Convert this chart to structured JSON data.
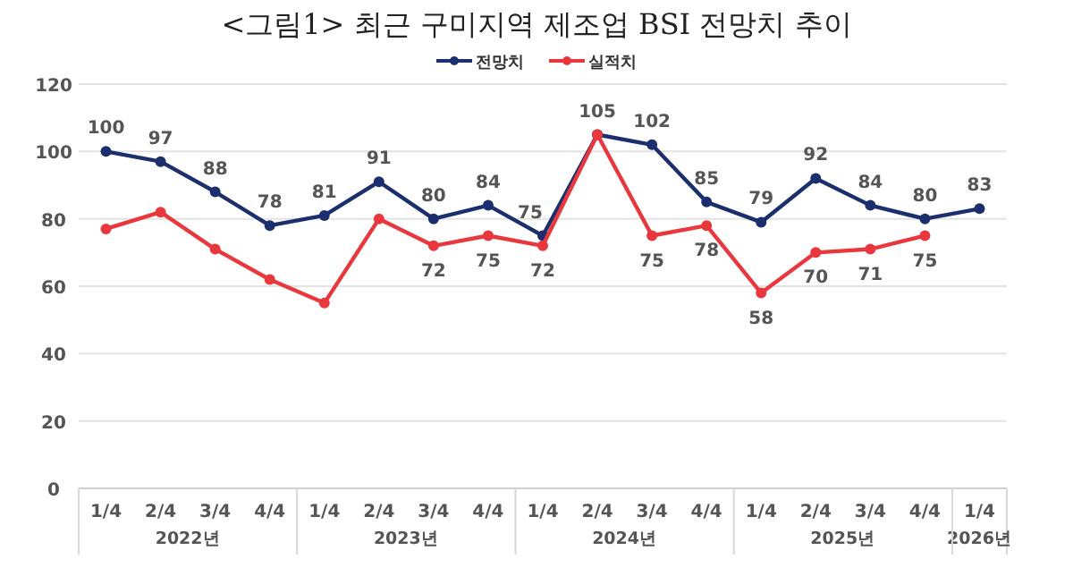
{
  "chart_data": {
    "type": "line",
    "title": "<그림1> 최근 구미지역 제조업 BSI 전망치 추이",
    "categories": [
      "1/4",
      "2/4",
      "3/4",
      "4/4",
      "1/4",
      "2/4",
      "3/4",
      "4/4",
      "1/4",
      "2/4",
      "3/4",
      "4/4",
      "1/4",
      "2/4",
      "3/4",
      "4/4",
      "1/4"
    ],
    "annotations": [
      "2022년",
      "2023년",
      "2024년",
      "2025년",
      "2026년"
    ],
    "series": [
      {
        "name": "전망치",
        "color": "#1b2f6e",
        "values": [
          100,
          97,
          88,
          78,
          81,
          91,
          80,
          84,
          75,
          105,
          102,
          85,
          79,
          92,
          84,
          80,
          83
        ],
        "value_labels": [
          "100",
          "97",
          "88",
          "78",
          "81",
          "91",
          "80",
          "84",
          "75",
          "105",
          "102",
          "85",
          "79",
          "92",
          "84",
          "80",
          "83"
        ]
      },
      {
        "name": "실적치",
        "color": "#e8383d",
        "values": [
          77,
          82,
          71,
          62,
          55,
          80,
          72,
          75,
          72,
          105,
          75,
          78,
          58,
          70,
          71,
          75,
          null
        ],
        "value_labels": [
          null,
          null,
          null,
          null,
          null,
          null,
          "72",
          "75",
          "72",
          null,
          "75",
          "78",
          "58",
          "70",
          "71",
          "75",
          null
        ]
      }
    ],
    "ylim": [
      0,
      120
    ],
    "yticks": [
      0,
      20,
      40,
      60,
      80,
      100,
      120
    ],
    "grid": "y",
    "legend": "top",
    "marker": "circle"
  }
}
